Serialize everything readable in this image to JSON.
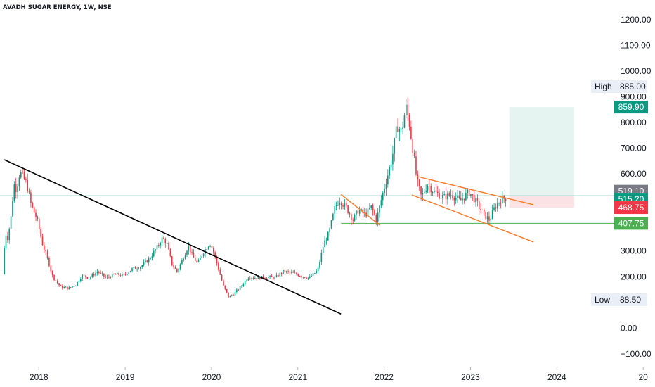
{
  "chart_data": {
    "type": "candlestick",
    "title": "AVADH SUGAR ENERGY, 1W, NSE",
    "y_ticks": [
      -100,
      0,
      100,
      200,
      300,
      400,
      500,
      600,
      700,
      800,
      900,
      1000,
      1100,
      1200
    ],
    "y_tick_labels": [
      "−100.00",
      "0.00",
      "100.00",
      "200.00",
      "300.00",
      "400.00",
      "500.00",
      "600.00",
      "700.00",
      "800.00",
      "900.00",
      "1000.00",
      "1100.00",
      "1200.00"
    ],
    "ylim": [
      -130,
      1235
    ],
    "x_ticks": [
      "2018",
      "2019",
      "2020",
      "2021",
      "2022",
      "2023",
      "2024",
      "20"
    ],
    "xlim": [
      2017.55,
      2025.3
    ],
    "grid": false,
    "price_anchors": [
      [
        2017.6,
        210
      ],
      [
        2017.63,
        370
      ],
      [
        2017.66,
        350
      ],
      [
        2017.7,
        440
      ],
      [
        2017.73,
        560
      ],
      [
        2017.76,
        540
      ],
      [
        2017.8,
        610
      ],
      [
        2017.83,
        590
      ],
      [
        2017.88,
        560
      ],
      [
        2017.93,
        480
      ],
      [
        2018.0,
        420
      ],
      [
        2018.06,
        330
      ],
      [
        2018.12,
        270
      ],
      [
        2018.18,
        200
      ],
      [
        2018.27,
        160
      ],
      [
        2018.37,
        155
      ],
      [
        2018.45,
        170
      ],
      [
        2018.52,
        205
      ],
      [
        2018.6,
        195
      ],
      [
        2018.7,
        220
      ],
      [
        2018.8,
        195
      ],
      [
        2018.9,
        210
      ],
      [
        2019.0,
        205
      ],
      [
        2019.1,
        230
      ],
      [
        2019.2,
        240
      ],
      [
        2019.3,
        270
      ],
      [
        2019.38,
        310
      ],
      [
        2019.45,
        350
      ],
      [
        2019.5,
        330
      ],
      [
        2019.56,
        250
      ],
      [
        2019.62,
        220
      ],
      [
        2019.7,
        280
      ],
      [
        2019.75,
        320
      ],
      [
        2019.8,
        280
      ],
      [
        2019.86,
        250
      ],
      [
        2019.93,
        300
      ],
      [
        2020.0,
        330
      ],
      [
        2020.05,
        290
      ],
      [
        2020.1,
        230
      ],
      [
        2020.16,
        160
      ],
      [
        2020.22,
        120
      ],
      [
        2020.3,
        140
      ],
      [
        2020.38,
        170
      ],
      [
        2020.45,
        200
      ],
      [
        2020.55,
        195
      ],
      [
        2020.65,
        200
      ],
      [
        2020.75,
        195
      ],
      [
        2020.85,
        220
      ],
      [
        2020.95,
        215
      ],
      [
        2021.05,
        205
      ],
      [
        2021.15,
        195
      ],
      [
        2021.25,
        225
      ],
      [
        2021.32,
        330
      ],
      [
        2021.38,
        370
      ],
      [
        2021.45,
        470
      ],
      [
        2021.5,
        500
      ],
      [
        2021.58,
        470
      ],
      [
        2021.66,
        420
      ],
      [
        2021.72,
        460
      ],
      [
        2021.8,
        440
      ],
      [
        2021.87,
        470
      ],
      [
        2021.93,
        420
      ],
      [
        2022.0,
        520
      ],
      [
        2022.08,
        620
      ],
      [
        2022.12,
        680
      ],
      [
        2022.17,
        790
      ],
      [
        2022.22,
        760
      ],
      [
        2022.27,
        860
      ],
      [
        2022.31,
        800
      ],
      [
        2022.35,
        700
      ],
      [
        2022.4,
        570
      ],
      [
        2022.45,
        510
      ],
      [
        2022.52,
        560
      ],
      [
        2022.6,
        530
      ],
      [
        2022.7,
        510
      ],
      [
        2022.8,
        520
      ],
      [
        2022.9,
        495
      ],
      [
        2023.0,
        530
      ],
      [
        2023.06,
        505
      ],
      [
        2023.12,
        470
      ],
      [
        2023.18,
        440
      ],
      [
        2023.24,
        420
      ],
      [
        2023.3,
        470
      ],
      [
        2023.37,
        500
      ],
      [
        2023.42,
        505
      ]
    ],
    "trendlines": [
      {
        "color": "#000000",
        "points": [
          [
            2017.6,
            655
          ],
          [
            2021.5,
            55
          ]
        ]
      },
      {
        "color": "#f57c2b",
        "points": [
          [
            2021.5,
            520
          ],
          [
            2021.95,
            400
          ]
        ]
      },
      {
        "color": "#f57c2b",
        "points": [
          [
            2022.38,
            590
          ],
          [
            2023.73,
            480
          ]
        ]
      },
      {
        "color": "#f57c2b",
        "points": [
          [
            2022.32,
            518
          ],
          [
            2023.73,
            335
          ]
        ]
      }
    ],
    "horizontal_lines": [
      {
        "value": 407.75,
        "color": "#4caf50",
        "x_from": 2021.5,
        "x_to": 2025.3
      },
      {
        "value": 515.2,
        "color": "#8fd1c8",
        "x_from": 2017.55,
        "x_to": 2025.3
      }
    ],
    "position_zones": [
      {
        "kind": "profit",
        "x_from": 2023.45,
        "x_to": 2024.2,
        "y_from": 515.2,
        "y_to": 859.9,
        "color": "#e6f4f1"
      },
      {
        "kind": "loss",
        "x_from": 2023.45,
        "x_to": 2024.2,
        "y_from": 468.75,
        "y_to": 515.2,
        "color": "#fbe3e5"
      }
    ],
    "price_tags": [
      {
        "label": "859.90",
        "value": 859.9,
        "color": "#089981"
      },
      {
        "label": "519.10",
        "value": 519.1,
        "color": "#787b86",
        "offset": -5
      },
      {
        "label": "515.20",
        "value": 515.2,
        "color": "#089981",
        "offset": 5
      },
      {
        "label": "468.75",
        "value": 468.75,
        "color": "#f23645"
      },
      {
        "label": "407.75",
        "value": 407.75,
        "color": "#4caf50"
      }
    ],
    "high_low": [
      {
        "label": "High",
        "value_label": "885.00",
        "value": 885
      },
      {
        "label": "Low",
        "value_label": "88.50",
        "value": 88.5
      }
    ],
    "up_color": "#089981",
    "down_color": "#f23645"
  }
}
